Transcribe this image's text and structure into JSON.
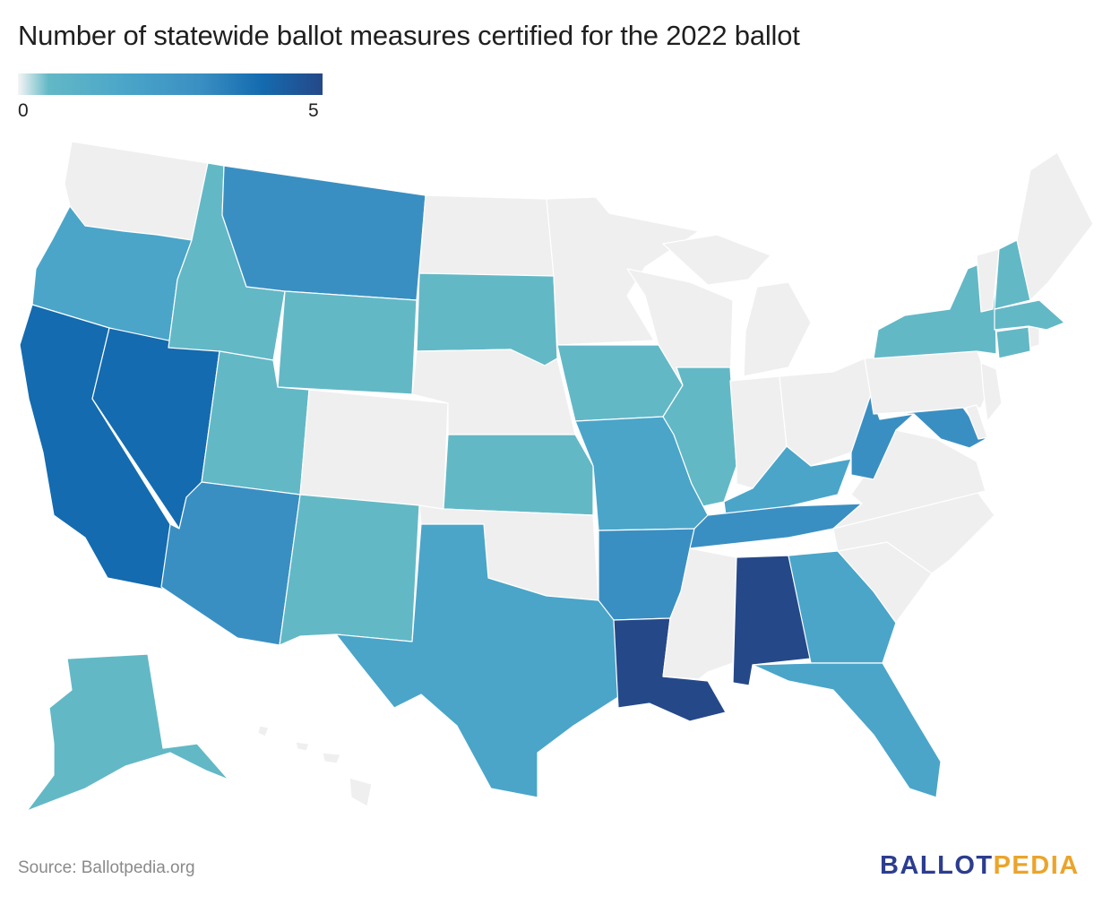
{
  "title": "Number of statewide ballot measures certified for the 2022 ballot",
  "legend": {
    "min_label": "0",
    "max_label": "5",
    "min_value": 0,
    "max_value": 5,
    "colors": [
      "#f5f5f5",
      "#63b8c6",
      "#4aa5c9",
      "#3a8fc2",
      "#146baf",
      "#254889"
    ]
  },
  "no_data_color": "#efefef",
  "source": "Source: Ballotpedia.org",
  "logo": {
    "part1": "BALLOT",
    "part2": "PEDIA"
  },
  "states": {
    "WA": 0,
    "OR": 2,
    "CA": 4,
    "NV": 4,
    "ID": 1,
    "MT": 3,
    "WY": 1,
    "UT": 1,
    "AZ": 3,
    "CO": 0,
    "NM": 1,
    "ND": 0,
    "SD": 1,
    "NE": 0,
    "KS": 1,
    "OK": 0,
    "TX": 2,
    "MN": 0,
    "IA": 1,
    "MO": 2,
    "AR": 3,
    "LA": 5,
    "WI": 0,
    "IL": 1,
    "MI": 0,
    "IN": 0,
    "OH": 0,
    "KY": 2,
    "TN": 3,
    "MS": 0,
    "AL": 5,
    "GA": 2,
    "FL": 2,
    "SC": 0,
    "NC": 0,
    "VA": 0,
    "WV": 3,
    "MD": 3,
    "DE": 0,
    "PA": 0,
    "NJ": 0,
    "NY": 1,
    "CT": 1,
    "RI": 0,
    "MA": 1,
    "VT": 0,
    "NH": 1,
    "ME": 0,
    "AK": 1,
    "HI": 0
  }
}
